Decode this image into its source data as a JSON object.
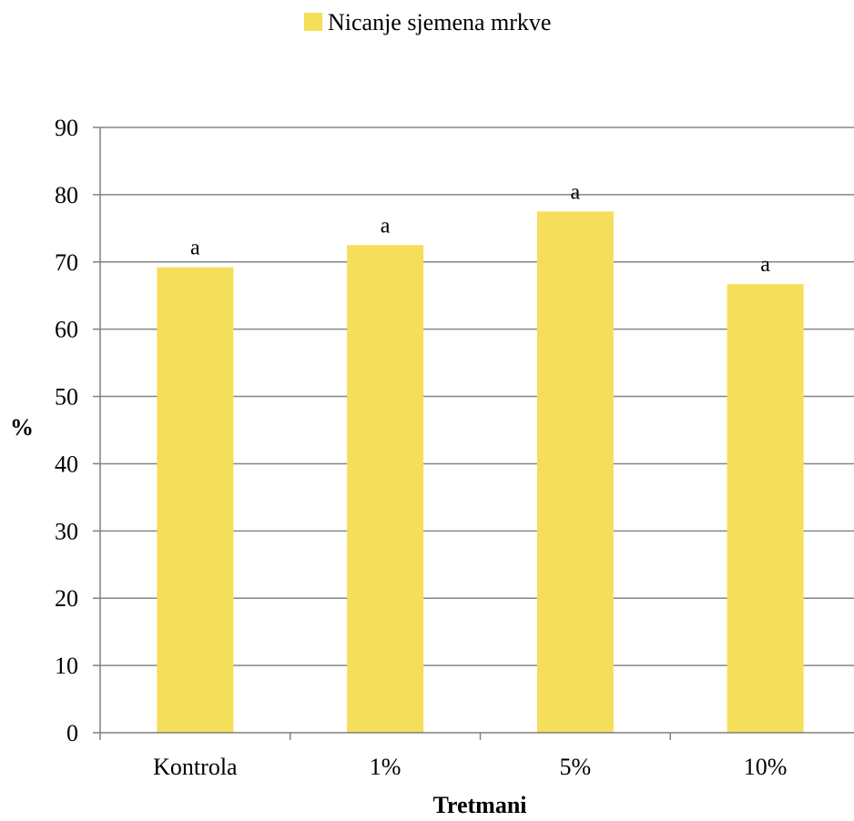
{
  "chart_data": {
    "type": "bar",
    "categories": [
      "Kontrola",
      "1%",
      "5%",
      "10%"
    ],
    "series": [
      {
        "name": "Nicanje sjemena mrkve",
        "values": [
          69.2,
          72.5,
          77.5,
          66.7
        ],
        "labels": [
          "a",
          "a",
          "a",
          "a"
        ],
        "color": "#f5de59"
      }
    ],
    "xlabel": "Tretmani",
    "ylabel": "%",
    "ylim": [
      0,
      90
    ],
    "yticks": [
      "0",
      "10",
      "20",
      "30",
      "40",
      "50",
      "60",
      "70",
      "80",
      "90"
    ],
    "grid": true,
    "legend": "top-center"
  }
}
